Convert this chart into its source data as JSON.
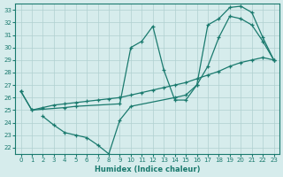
{
  "line1_x": [
    0,
    1,
    2,
    3,
    4,
    5,
    6,
    7,
    8,
    9,
    10,
    11,
    12,
    13,
    14,
    15,
    16,
    17,
    18,
    19,
    20,
    21,
    22,
    23
  ],
  "line1_y": [
    26.5,
    25.0,
    25.2,
    25.4,
    25.5,
    25.6,
    25.7,
    25.8,
    25.9,
    26.0,
    26.2,
    26.4,
    26.6,
    26.8,
    27.0,
    27.2,
    27.5,
    27.8,
    28.1,
    28.5,
    28.8,
    29.0,
    29.2,
    29.0
  ],
  "line2_x": [
    0,
    1,
    4,
    5,
    9,
    10,
    11,
    12,
    13,
    14,
    15,
    16,
    17,
    18,
    19,
    20,
    21,
    22,
    23
  ],
  "line2_y": [
    26.5,
    25.0,
    25.2,
    25.3,
    25.5,
    30.0,
    30.5,
    31.7,
    28.2,
    25.8,
    25.8,
    27.0,
    31.8,
    32.3,
    33.2,
    33.3,
    32.8,
    30.8,
    29.0
  ],
  "line3_x": [
    2,
    3,
    4,
    5,
    6,
    7,
    8,
    9,
    10,
    14,
    15,
    16,
    17,
    18,
    19,
    20,
    21,
    22,
    23
  ],
  "line3_y": [
    24.5,
    23.8,
    23.2,
    23.0,
    22.8,
    22.2,
    21.5,
    24.2,
    25.3,
    26.0,
    26.2,
    27.0,
    28.5,
    30.8,
    32.5,
    32.3,
    31.8,
    30.5,
    29.0
  ],
  "color": "#1a7a6e",
  "bg_color": "#d6ecec",
  "grid_color": "#b0d0d0",
  "xlabel": "Humidex (Indice chaleur)",
  "xlim": [
    -0.5,
    23.5
  ],
  "ylim": [
    21.5,
    33.5
  ],
  "yticks": [
    22,
    23,
    24,
    25,
    26,
    27,
    28,
    29,
    30,
    31,
    32,
    33
  ],
  "xticks": [
    0,
    1,
    2,
    3,
    4,
    5,
    6,
    7,
    8,
    9,
    10,
    11,
    12,
    13,
    14,
    15,
    16,
    17,
    18,
    19,
    20,
    21,
    22,
    23
  ],
  "marker": "+"
}
